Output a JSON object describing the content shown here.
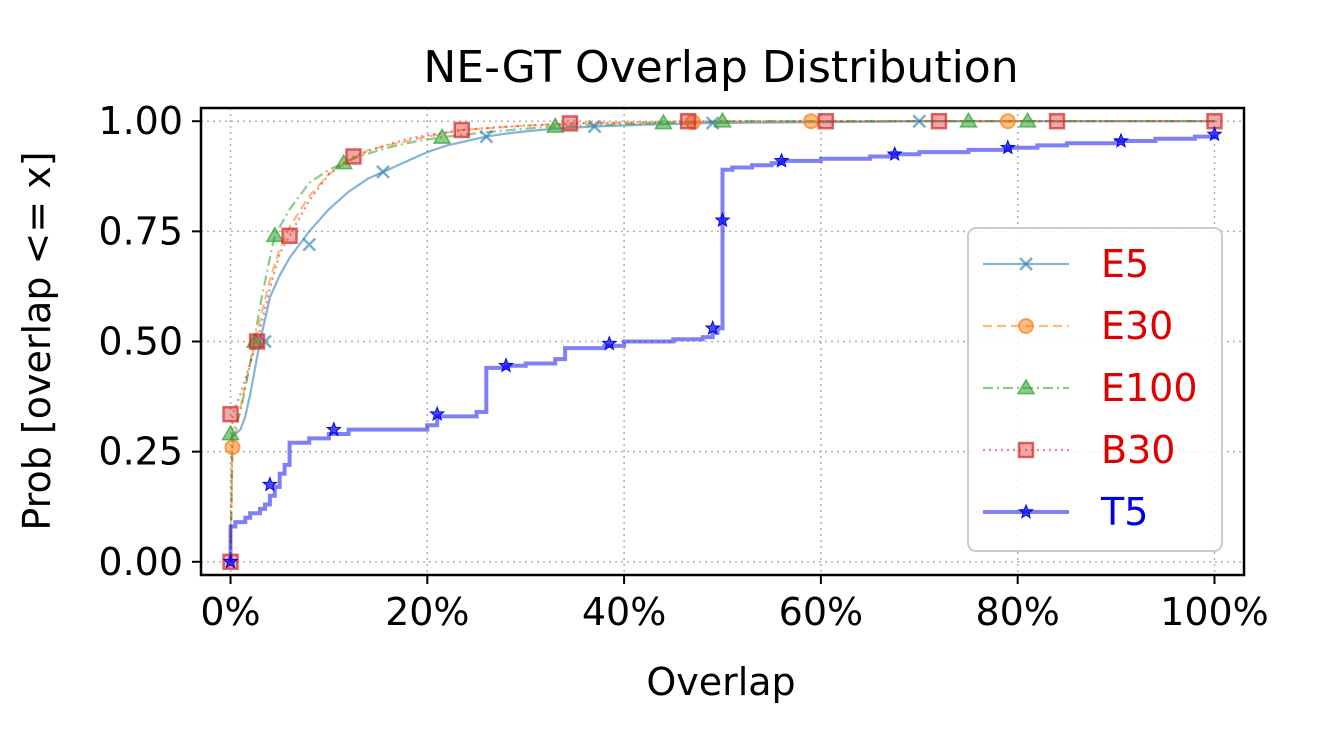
{
  "chart_data": {
    "type": "line",
    "title": "NE-GT Overlap Distribution",
    "xlabel": "Overlap",
    "ylabel": "Prob [overlap <= x]",
    "xlim": [
      -0.03,
      1.03
    ],
    "ylim": [
      -0.03,
      1.03
    ],
    "xticks": [
      0,
      0.2,
      0.4,
      0.6,
      0.8,
      1.0
    ],
    "xtick_labels": [
      "0%",
      "20%",
      "40%",
      "60%",
      "80%",
      "100%"
    ],
    "yticks": [
      0,
      0.25,
      0.5,
      0.75,
      1.0
    ],
    "ytick_labels": [
      "0.00",
      "0.25",
      "0.50",
      "0.75",
      "1.00"
    ],
    "grid": true,
    "legend_position": "center-right",
    "series": [
      {
        "name": "E5",
        "color": "#1f77b4",
        "label_color": "#e00000",
        "linestyle": "solid",
        "marker": "x",
        "step": false,
        "x": [
          0,
          0.005,
          0.01,
          0.015,
          0.02,
          0.025,
          0.03,
          0.035,
          0.04,
          0.05,
          0.06,
          0.07,
          0.08,
          0.1,
          0.12,
          0.14,
          0.16,
          0.18,
          0.2,
          0.22,
          0.24,
          0.26,
          0.28,
          0.3,
          0.33,
          0.37,
          0.42,
          0.49,
          0.6,
          0.7,
          1.0
        ],
        "y": [
          0.28,
          0.29,
          0.3,
          0.33,
          0.38,
          0.44,
          0.5,
          0.55,
          0.6,
          0.65,
          0.69,
          0.72,
          0.75,
          0.8,
          0.84,
          0.87,
          0.89,
          0.91,
          0.93,
          0.945,
          0.955,
          0.965,
          0.972,
          0.977,
          0.983,
          0.988,
          0.992,
          0.996,
          0.998,
          1.0,
          1.0
        ],
        "markers_x": [
          0.035,
          0.08,
          0.155,
          0.26,
          0.37,
          0.49,
          0.7
        ],
        "markers_y": [
          0.5,
          0.72,
          0.885,
          0.965,
          0.988,
          0.996,
          1.0
        ]
      },
      {
        "name": "E30",
        "color": "#ff7f0e",
        "label_color": "#e00000",
        "linestyle": "dashed",
        "marker": "o",
        "step": false,
        "x": [
          0,
          0.002,
          0.005,
          0.01,
          0.02,
          0.03,
          0.04,
          0.05,
          0.06,
          0.08,
          0.1,
          0.12,
          0.14,
          0.17,
          0.2,
          0.235,
          0.27,
          0.3,
          0.35,
          0.47,
          0.59,
          0.79,
          1.0
        ],
        "y": [
          0.0,
          0.26,
          0.29,
          0.35,
          0.45,
          0.55,
          0.64,
          0.71,
          0.76,
          0.83,
          0.88,
          0.91,
          0.935,
          0.95,
          0.965,
          0.98,
          0.985,
          0.99,
          0.995,
          0.998,
          1.0,
          1.0,
          1.0
        ],
        "markers_x": [
          0.002,
          0.47,
          0.59,
          0.79
        ],
        "markers_y": [
          0.26,
          0.998,
          1.0,
          1.0
        ]
      },
      {
        "name": "E100",
        "color": "#2ca02c",
        "label_color": "#e00000",
        "linestyle": "dashdot",
        "marker": "^",
        "step": false,
        "x": [
          0,
          0.002,
          0.01,
          0.02,
          0.03,
          0.04,
          0.045,
          0.06,
          0.08,
          0.1,
          0.115,
          0.13,
          0.16,
          0.19,
          0.22,
          0.26,
          0.3,
          0.33,
          0.4,
          0.44,
          0.5,
          0.75,
          0.81,
          1.0
        ],
        "y": [
          0.0,
          0.29,
          0.34,
          0.45,
          0.58,
          0.69,
          0.74,
          0.8,
          0.86,
          0.89,
          0.905,
          0.92,
          0.94,
          0.955,
          0.965,
          0.975,
          0.983,
          0.988,
          0.993,
          0.996,
          1.0,
          1.0,
          1.0,
          1.0
        ],
        "markers_x": [
          0.0,
          0.025,
          0.045,
          0.115,
          0.215,
          0.33,
          0.44,
          0.5,
          0.75,
          0.81
        ],
        "markers_y": [
          0.29,
          0.5,
          0.74,
          0.905,
          0.963,
          0.988,
          0.996,
          1.0,
          1.0,
          1.0
        ]
      },
      {
        "name": "B30",
        "color": "#d62728",
        "label_color": "#e00000",
        "linestyle": "dotted",
        "marker": "s",
        "step": false,
        "x": [
          0,
          0.002,
          0.01,
          0.02,
          0.027,
          0.04,
          0.05,
          0.06,
          0.08,
          0.1,
          0.125,
          0.15,
          0.18,
          0.21,
          0.235,
          0.28,
          0.35,
          0.465,
          0.605,
          0.72,
          0.84,
          1.0
        ],
        "y": [
          0.0,
          0.335,
          0.38,
          0.45,
          0.5,
          0.62,
          0.7,
          0.74,
          0.82,
          0.88,
          0.92,
          0.94,
          0.96,
          0.972,
          0.98,
          0.988,
          0.995,
          1.0,
          1.0,
          1.0,
          1.0,
          1.0
        ],
        "markers_x": [
          0.0,
          0.0,
          0.027,
          0.06,
          0.125,
          0.235,
          0.345,
          0.465,
          0.605,
          0.72,
          0.84,
          1.0
        ],
        "markers_y": [
          0.0,
          0.335,
          0.5,
          0.74,
          0.92,
          0.98,
          0.995,
          1.0,
          1.0,
          1.0,
          1.0,
          1.0
        ],
        "note": "overlapping markers"
      },
      {
        "name": "T5",
        "color": "#0000ee",
        "label_color": "#0000ee",
        "linestyle": "solid",
        "marker": "*",
        "step": true,
        "x": [
          0,
          0.0,
          0.005,
          0.01,
          0.015,
          0.02,
          0.025,
          0.03,
          0.035,
          0.04,
          0.045,
          0.05,
          0.055,
          0.06,
          0.08,
          0.1,
          0.12,
          0.15,
          0.2,
          0.21,
          0.22,
          0.25,
          0.26,
          0.28,
          0.3,
          0.33,
          0.34,
          0.38,
          0.4,
          0.45,
          0.48,
          0.49,
          0.495,
          0.5,
          0.51,
          0.53,
          0.55,
          0.56,
          0.6,
          0.65,
          0.67,
          0.7,
          0.75,
          0.79,
          0.82,
          0.85,
          0.9,
          0.94,
          0.98,
          1.0
        ],
        "y": [
          0,
          0.08,
          0.09,
          0.09,
          0.1,
          0.11,
          0.11,
          0.12,
          0.13,
          0.15,
          0.17,
          0.2,
          0.22,
          0.27,
          0.28,
          0.29,
          0.3,
          0.3,
          0.31,
          0.33,
          0.33,
          0.34,
          0.44,
          0.445,
          0.45,
          0.46,
          0.485,
          0.49,
          0.5,
          0.505,
          0.51,
          0.52,
          0.53,
          0.89,
          0.895,
          0.9,
          0.905,
          0.91,
          0.915,
          0.92,
          0.925,
          0.93,
          0.935,
          0.94,
          0.945,
          0.95,
          0.955,
          0.96,
          0.965,
          0.97
        ],
        "markers_x": [
          0.0,
          0.04,
          0.105,
          0.21,
          0.28,
          0.385,
          0.49,
          0.5,
          0.56,
          0.675,
          0.79,
          0.905,
          1.0
        ],
        "markers_y": [
          0.0,
          0.175,
          0.3,
          0.335,
          0.445,
          0.495,
          0.53,
          0.775,
          0.91,
          0.925,
          0.94,
          0.955,
          0.97
        ]
      }
    ]
  }
}
